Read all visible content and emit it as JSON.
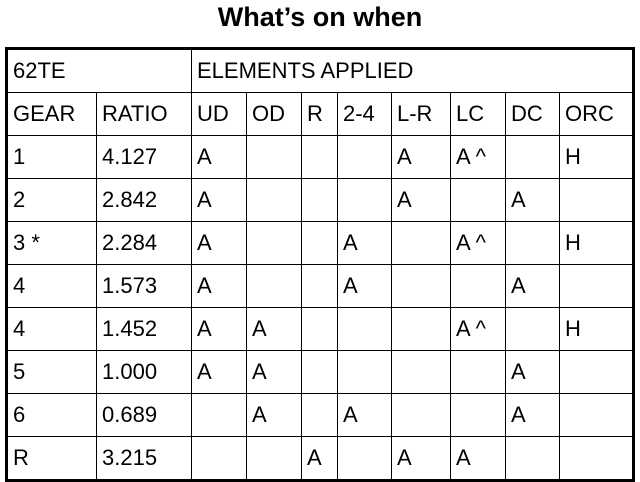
{
  "title": "What’s on when",
  "table": {
    "group_header": [
      "62TE",
      "ELEMENTS APPLIED"
    ],
    "columns": [
      "GEAR",
      "RATIO",
      "UD",
      "OD",
      "R",
      "2-4",
      "L-R",
      "LC",
      "DC",
      "ORC"
    ],
    "rows": [
      [
        "1",
        "4.127",
        "A",
        null,
        null,
        null,
        "A",
        "A ^",
        null,
        "H"
      ],
      [
        "2",
        "2.842",
        "A",
        null,
        null,
        null,
        "A",
        null,
        "A",
        null
      ],
      [
        "3 *",
        "2.284",
        "A",
        null,
        null,
        "A",
        null,
        "A ^",
        null,
        "H"
      ],
      [
        "4",
        "1.573",
        "A",
        null,
        null,
        "A",
        null,
        null,
        "A",
        null
      ],
      [
        "4",
        "1.452",
        "A",
        "A",
        null,
        null,
        null,
        "A ^",
        null,
        "H"
      ],
      [
        "5",
        "1.000",
        "A",
        "A",
        null,
        null,
        null,
        null,
        "A",
        null
      ],
      [
        "6",
        "0.689",
        null,
        "A",
        null,
        "A",
        null,
        null,
        "A",
        null
      ],
      [
        "R",
        "3.215",
        null,
        null,
        "A",
        null,
        "A",
        "A",
        null,
        null
      ]
    ]
  }
}
